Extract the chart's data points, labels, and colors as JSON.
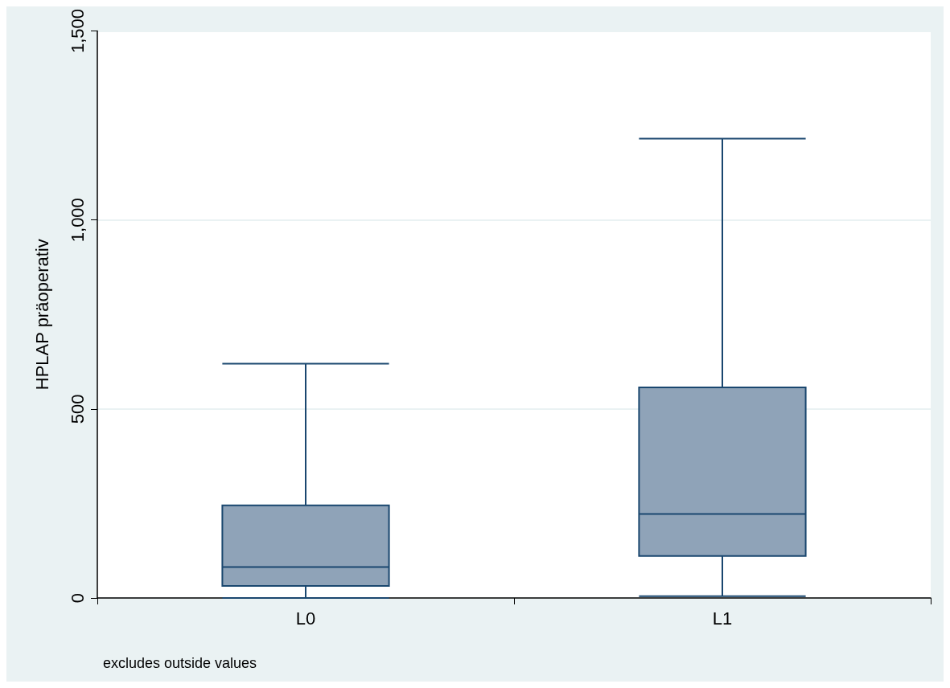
{
  "chart_data": {
    "type": "box",
    "ylabel": "HPLAP präoperativ",
    "categories": [
      "L0",
      "L1"
    ],
    "series": [
      {
        "color": "#8fa3b8",
        "boxes": [
          {
            "low": 0,
            "q1": 32,
            "median": 82,
            "q3": 245,
            "high": 620
          },
          {
            "low": 5,
            "q1": 111,
            "median": 222,
            "q3": 557,
            "high": 1215
          }
        ]
      }
    ],
    "ylim": [
      0,
      1500
    ],
    "yticks": [
      {
        "value": 0,
        "label": "0"
      },
      {
        "value": 500,
        "label": "500"
      },
      {
        "value": 1000,
        "label": "1,000"
      },
      {
        "value": 1500,
        "label": "1,500"
      }
    ],
    "grid": "y",
    "annotations": [
      "excludes outside values"
    ]
  }
}
